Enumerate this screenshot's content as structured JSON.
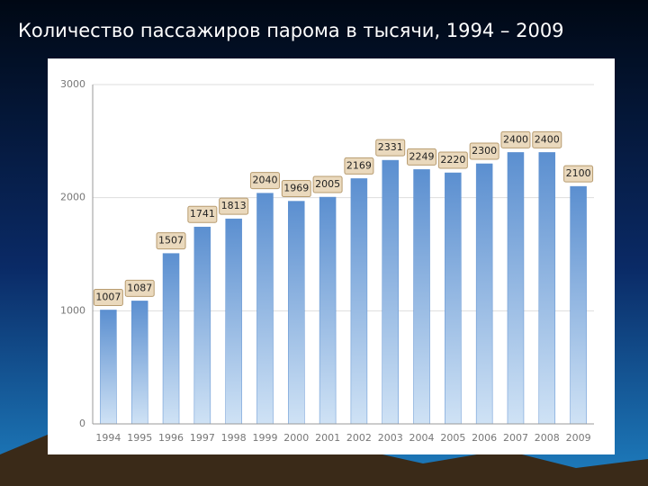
{
  "chart_data": {
    "type": "bar",
    "title": "Количество пассажиров парома в тысячи, 1994 – 2009",
    "categories": [
      "1994",
      "1995",
      "1996",
      "1997",
      "1998",
      "1999",
      "2000",
      "2001",
      "2002",
      "2003",
      "2004",
      "2005",
      "2006",
      "2007",
      "2008",
      "2009"
    ],
    "values": [
      1007,
      1087,
      1507,
      1741,
      1813,
      2040,
      1969,
      2005,
      2169,
      2331,
      2249,
      2220,
      2300,
      2400,
      2400,
      2100
    ],
    "color": "#5b8fd0",
    "ylim": [
      0,
      3000
    ],
    "yticks": [
      0,
      1000,
      2000,
      3000
    ],
    "grid": true
  }
}
